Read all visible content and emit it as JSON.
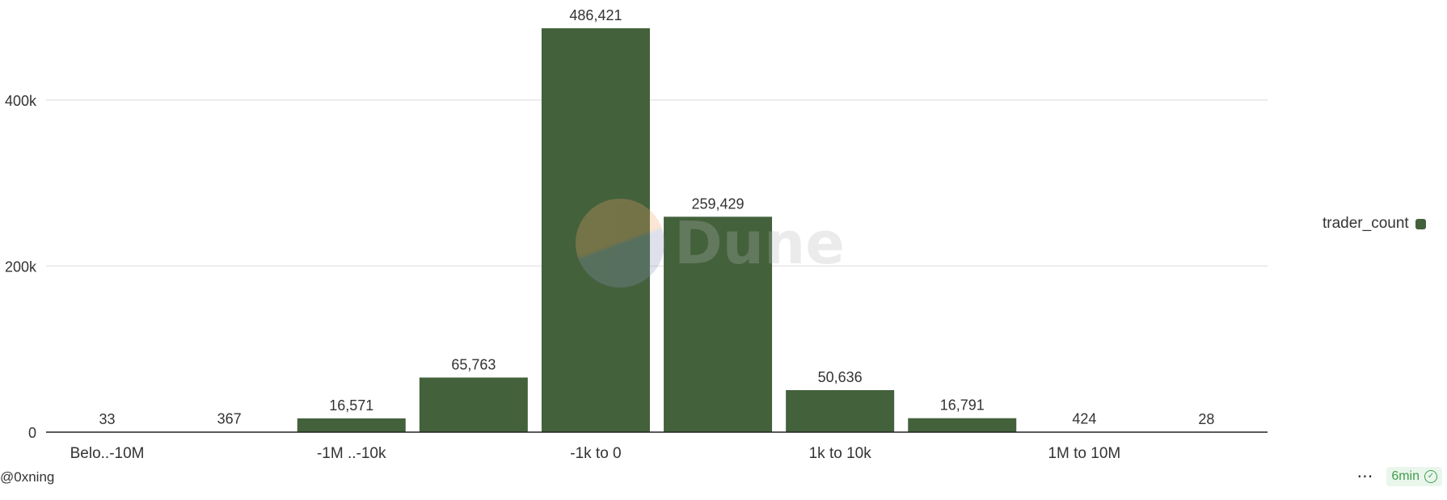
{
  "chart_data": {
    "type": "bar",
    "categories": [
      "Belo..-10M",
      "",
      "-1M ..-10k",
      "",
      "-1k to 0",
      "",
      "1k to 10k",
      "",
      "1M to 10M",
      ""
    ],
    "series": [
      {
        "name": "trader_count",
        "values": [
          33,
          367,
          16571,
          65763,
          486421,
          259429,
          50636,
          16791,
          424,
          28
        ]
      }
    ],
    "data_labels": [
      "33",
      "367",
      "16,571",
      "65,763",
      "486,421",
      "259,429",
      "50,636",
      "16,791",
      "424",
      "28"
    ],
    "y_ticks": [
      0,
      200000,
      400000
    ],
    "y_tick_labels": [
      "0",
      "200k",
      "400k"
    ],
    "ylim": [
      0,
      486421
    ],
    "grid": true,
    "legend_position": "right",
    "bar_color": "#43613b"
  },
  "watermark": {
    "text": "Dune"
  },
  "footer": {
    "author": "@0xning",
    "more_icon": "more-horizontal-icon",
    "refresh_label": "6min",
    "refresh_icon": "check-circle-icon",
    "refresh_color": "#3e9e4e"
  }
}
